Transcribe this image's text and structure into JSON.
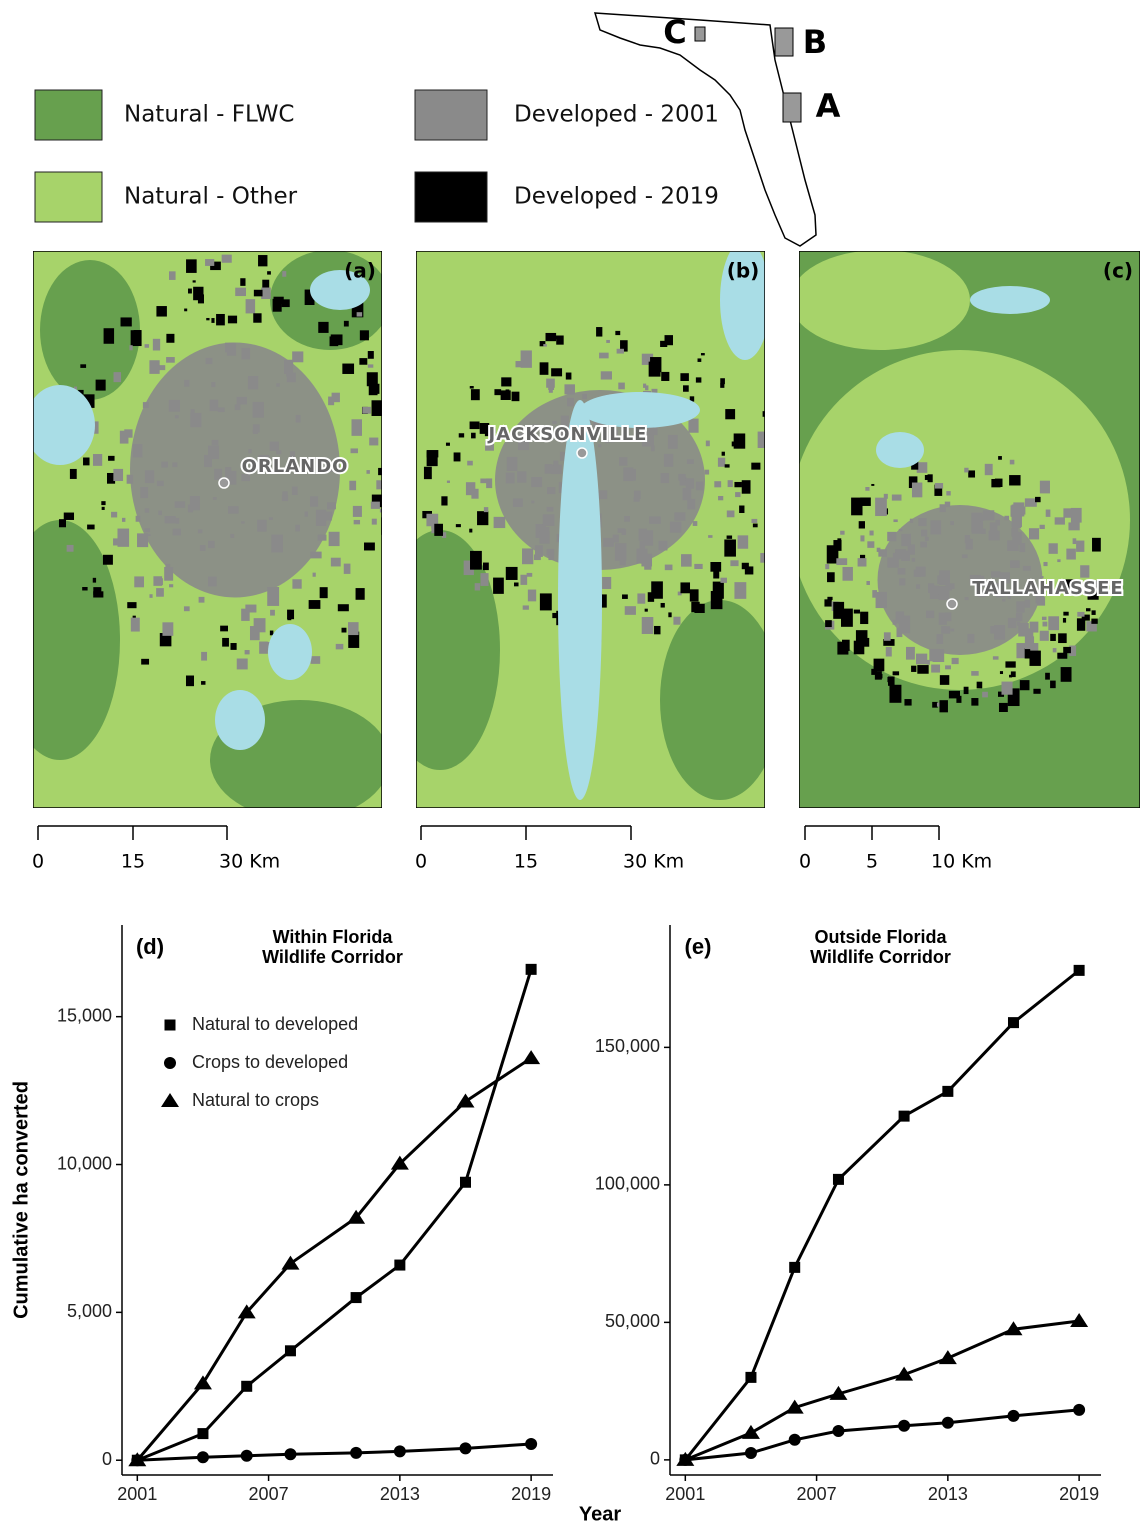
{
  "map_legend": [
    {
      "label": "Natural - FLWC",
      "color": "#67a04e"
    },
    {
      "label": "Natural - Other",
      "color": "#a7d36a"
    },
    {
      "label": "Developed - 2001",
      "color": "#8a8a8a"
    },
    {
      "label": "Developed - 2019",
      "color": "#000000"
    }
  ],
  "inset_labels": [
    "C",
    "B",
    "A"
  ],
  "maps": [
    {
      "panel": "(a)",
      "city": "ORLANDO",
      "scale": [
        "0",
        "15",
        "30 Km"
      ]
    },
    {
      "panel": "(b)",
      "city": "JACKSONVILLE",
      "scale": [
        "0",
        "15",
        "30 Km"
      ]
    },
    {
      "panel": "(c)",
      "city": "TALLAHASSEE",
      "scale": [
        "0",
        "5",
        "10 Km"
      ]
    }
  ],
  "shared_x_label": "Year",
  "chart_data": [
    {
      "type": "line",
      "panel": "(d)",
      "title": [
        "Within Florida",
        "Wildlife Corridor"
      ],
      "y_label": "Cumulative ha converted",
      "x": [
        2001,
        2004,
        2006,
        2008,
        2011,
        2013,
        2016,
        2019
      ],
      "xlim": [
        2000.3,
        2020
      ],
      "xticks": [
        2001,
        2007,
        2013,
        2019
      ],
      "ylim": [
        -500,
        18100
      ],
      "yticks": [
        0,
        {
          "value": 5000,
          "label": "5,000"
        },
        {
          "value": 10000,
          "label": "10,000"
        },
        {
          "value": 15000,
          "label": "15,000"
        }
      ],
      "legend": "upper left",
      "series": [
        {
          "name": "Natural to developed",
          "marker": "square",
          "color": "#000000",
          "values": [
            0,
            900,
            2500,
            3700,
            5500,
            6600,
            9400,
            16600
          ]
        },
        {
          "name": "Crops to developed",
          "marker": "circle",
          "color": "#000000",
          "values": [
            0,
            100,
            150,
            200,
            250,
            300,
            400,
            550
          ]
        },
        {
          "name": "Natural to crops",
          "marker": "triangle",
          "color": "#000000",
          "values": [
            0,
            2600,
            5000,
            6650,
            8200,
            10030,
            12130,
            13600
          ]
        }
      ]
    },
    {
      "type": "line",
      "panel": "(e)",
      "title": [
        "Outside Florida",
        "Wildlife Corridor"
      ],
      "x": [
        2001,
        2004,
        2006,
        2008,
        2011,
        2013,
        2016,
        2019
      ],
      "xlim": [
        2000.3,
        2020
      ],
      "xticks": [
        2001,
        2007,
        2013,
        2019
      ],
      "ylim": [
        -5500,
        194500
      ],
      "yticks": [
        0,
        {
          "value": 50000,
          "label": "50,000"
        },
        {
          "value": 100000,
          "label": "100,000"
        },
        {
          "value": 150000,
          "label": "150,000"
        }
      ],
      "series": [
        {
          "marker": "square",
          "color": "#000000",
          "values": [
            0,
            30000,
            70000,
            102000,
            125000,
            134000,
            159000,
            178000
          ]
        },
        {
          "marker": "circle",
          "color": "#000000",
          "values": [
            0,
            2500,
            7300,
            10500,
            12400,
            13500,
            16000,
            18200
          ]
        },
        {
          "marker": "triangle",
          "color": "#000000",
          "values": [
            0,
            9800,
            19000,
            24000,
            31000,
            37000,
            47500,
            50500
          ]
        }
      ]
    }
  ]
}
